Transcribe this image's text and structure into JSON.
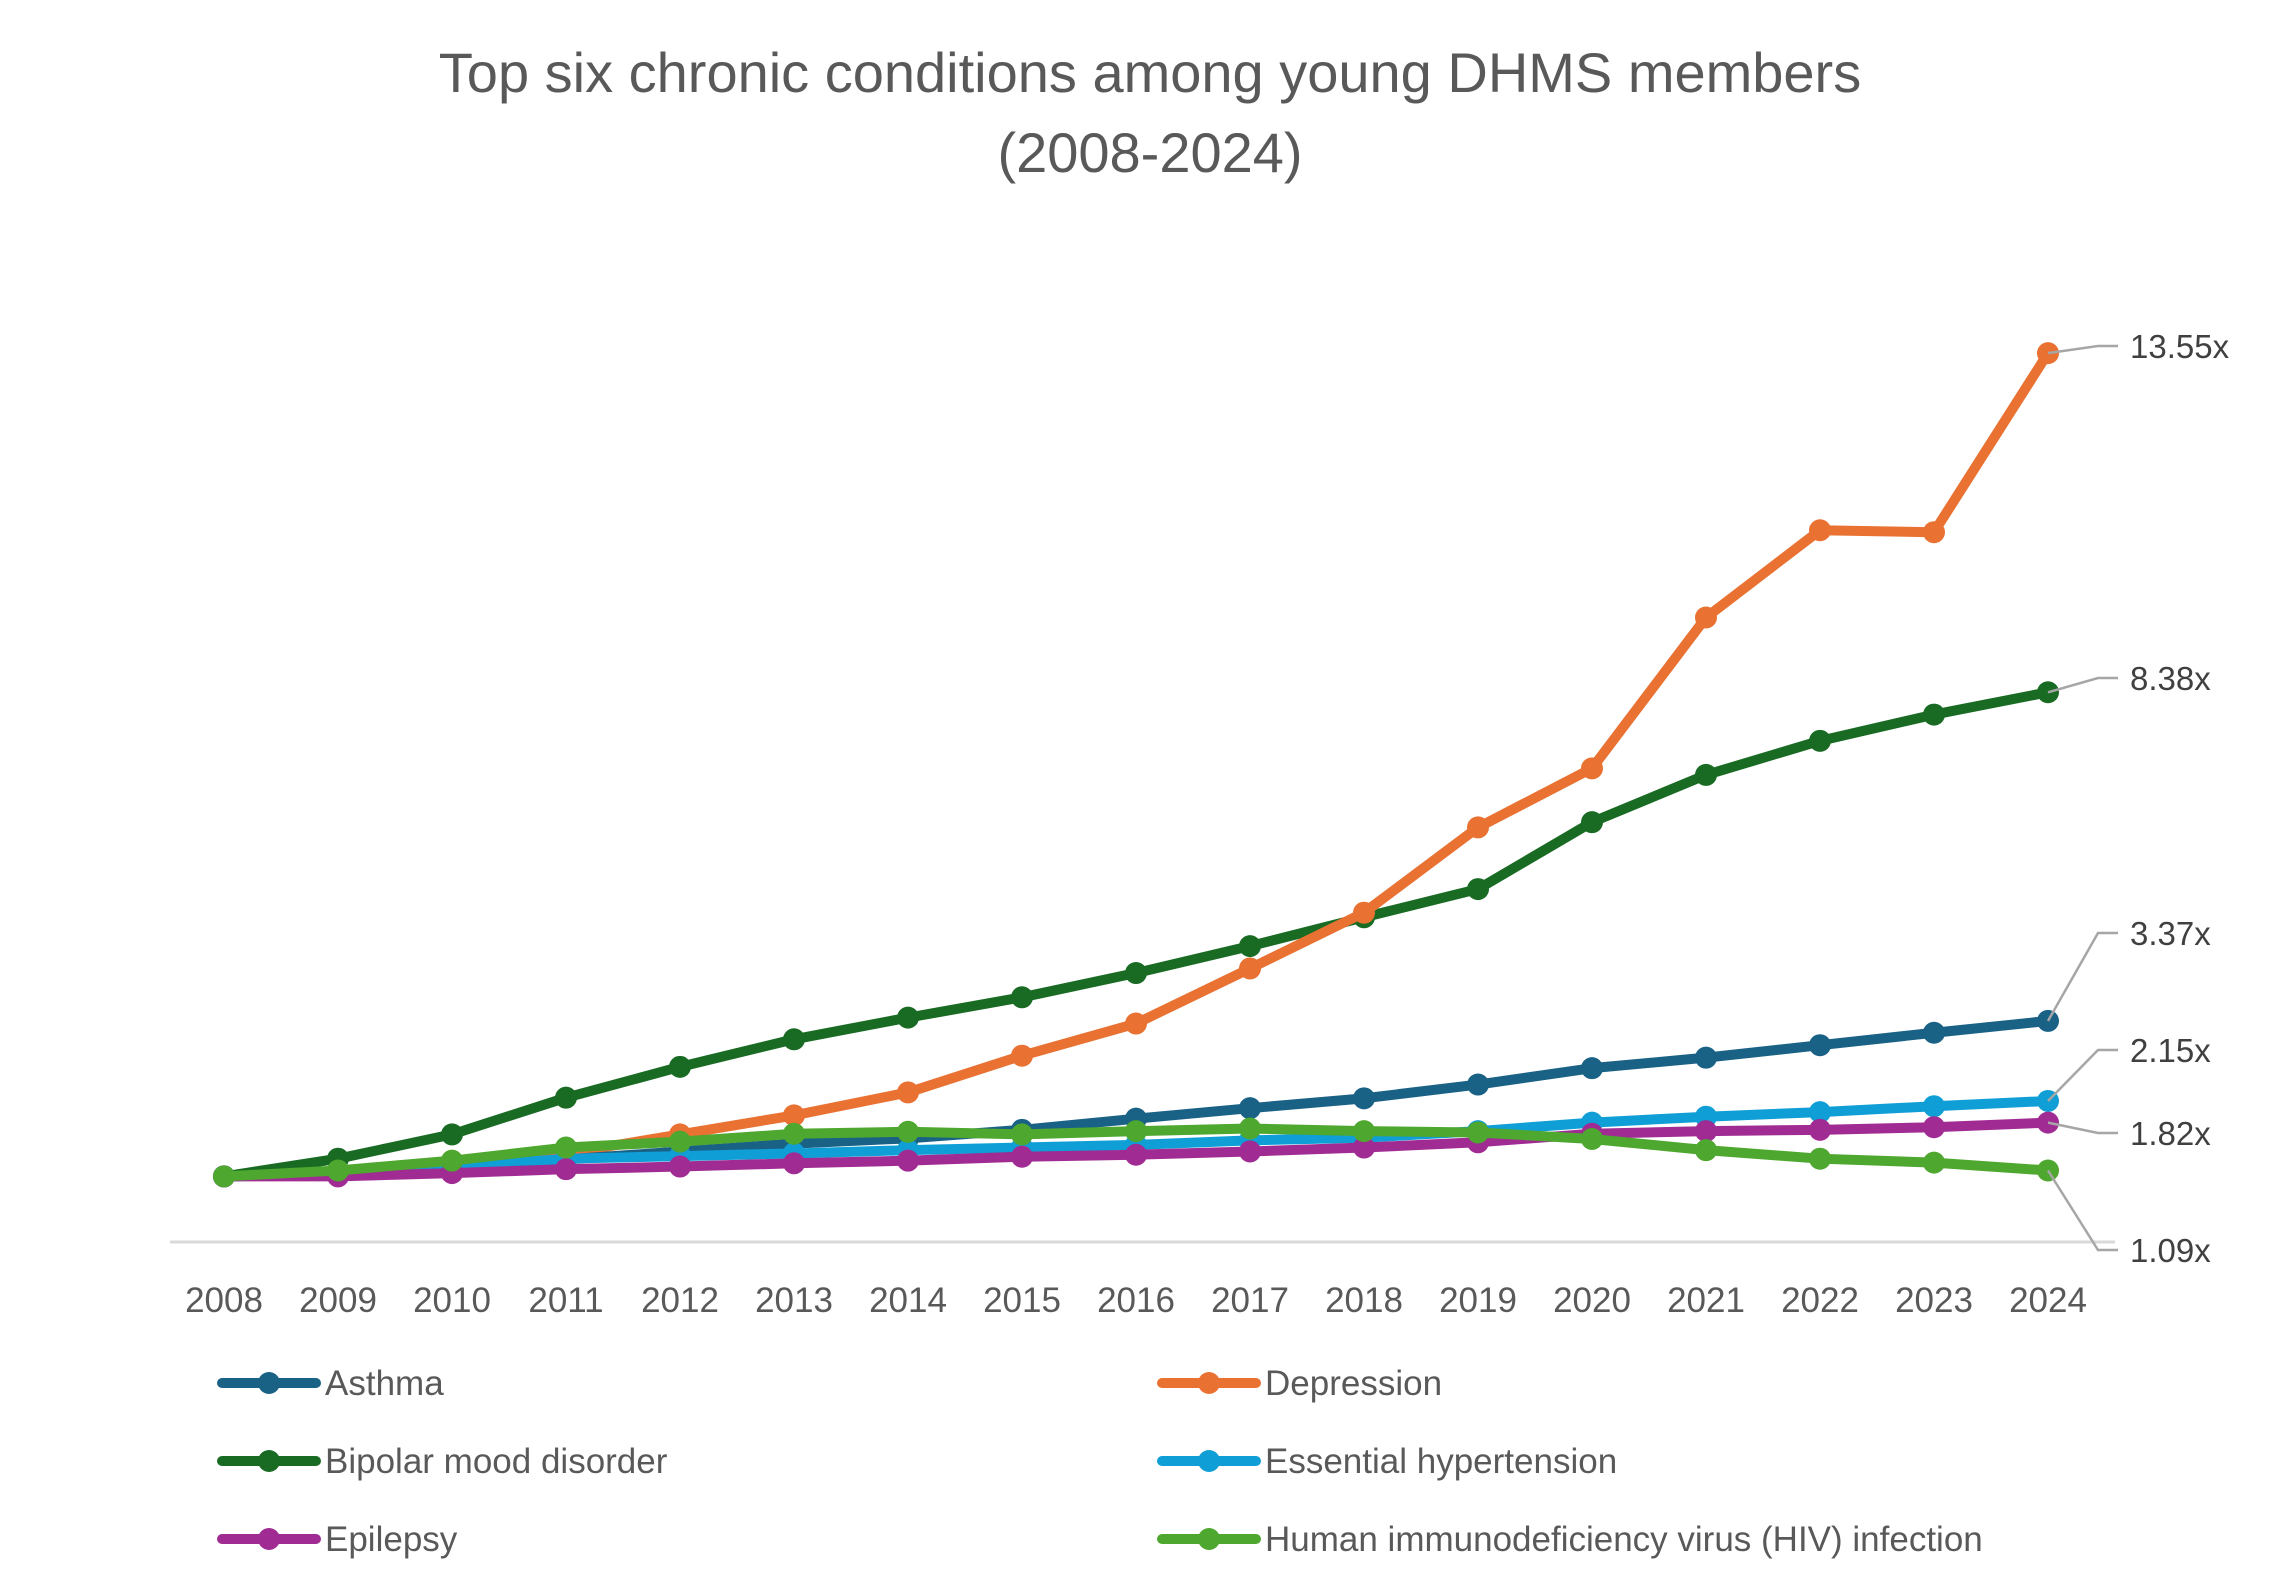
{
  "chart_data": {
    "type": "line",
    "title": "Top six chronic conditions among young DHMS members",
    "subtitle": "(2008-2024)",
    "xlabel": "",
    "ylabel": "",
    "ylim": [
      0,
      14
    ],
    "grid": false,
    "legend_position": "bottom",
    "categories": [
      "2008",
      "2009",
      "2010",
      "2011",
      "2012",
      "2013",
      "2014",
      "2015",
      "2016",
      "2017",
      "2018",
      "2019",
      "2020",
      "2021",
      "2022",
      "2023",
      "2024"
    ],
    "series": [
      {
        "name": "Asthma",
        "color": "#1a6186",
        "values": [
          1.0,
          1.03,
          1.15,
          1.26,
          1.38,
          1.5,
          1.58,
          1.71,
          1.88,
          2.04,
          2.19,
          2.4,
          2.65,
          2.81,
          3.0,
          3.19,
          3.37
        ],
        "end_label": "3.37x"
      },
      {
        "name": "Depression",
        "color": "#e97132",
        "values": [
          1.0,
          1.05,
          1.15,
          1.35,
          1.64,
          1.93,
          2.28,
          2.84,
          3.33,
          4.17,
          5.02,
          6.32,
          7.22,
          9.52,
          10.85,
          10.82,
          13.55
        ],
        "end_label": "13.55x"
      },
      {
        "name": "Bipolar mood disorder",
        "color": "#196b24",
        "values": [
          1.0,
          1.27,
          1.64,
          2.2,
          2.67,
          3.09,
          3.42,
          3.73,
          4.1,
          4.51,
          4.95,
          5.38,
          6.4,
          7.12,
          7.64,
          8.04,
          8.38
        ],
        "end_label": "8.38x"
      },
      {
        "name": "Essential hypertension",
        "color": "#0f9ed5",
        "values": [
          1.0,
          1.03,
          1.14,
          1.27,
          1.31,
          1.35,
          1.4,
          1.44,
          1.48,
          1.55,
          1.59,
          1.69,
          1.82,
          1.91,
          1.98,
          2.07,
          2.15
        ],
        "end_label": "2.15x"
      },
      {
        "name": "Epilepsy",
        "color": "#a02b93",
        "values": [
          1.0,
          1.0,
          1.05,
          1.11,
          1.15,
          1.2,
          1.24,
          1.3,
          1.33,
          1.38,
          1.44,
          1.52,
          1.65,
          1.69,
          1.71,
          1.75,
          1.82
        ],
        "end_label": "1.82x"
      },
      {
        "name": "Human immunodeficiency virus (HIV) infection",
        "color": "#4ea72e",
        "values": [
          1.0,
          1.09,
          1.24,
          1.44,
          1.53,
          1.65,
          1.68,
          1.64,
          1.69,
          1.73,
          1.69,
          1.67,
          1.57,
          1.4,
          1.27,
          1.21,
          1.09
        ],
        "end_label": "1.09x"
      }
    ]
  },
  "colors": {
    "text": "#595959",
    "label_text": "#404040",
    "axis_line": "#d9d9d9",
    "leader_line": "#a6a6a6"
  }
}
